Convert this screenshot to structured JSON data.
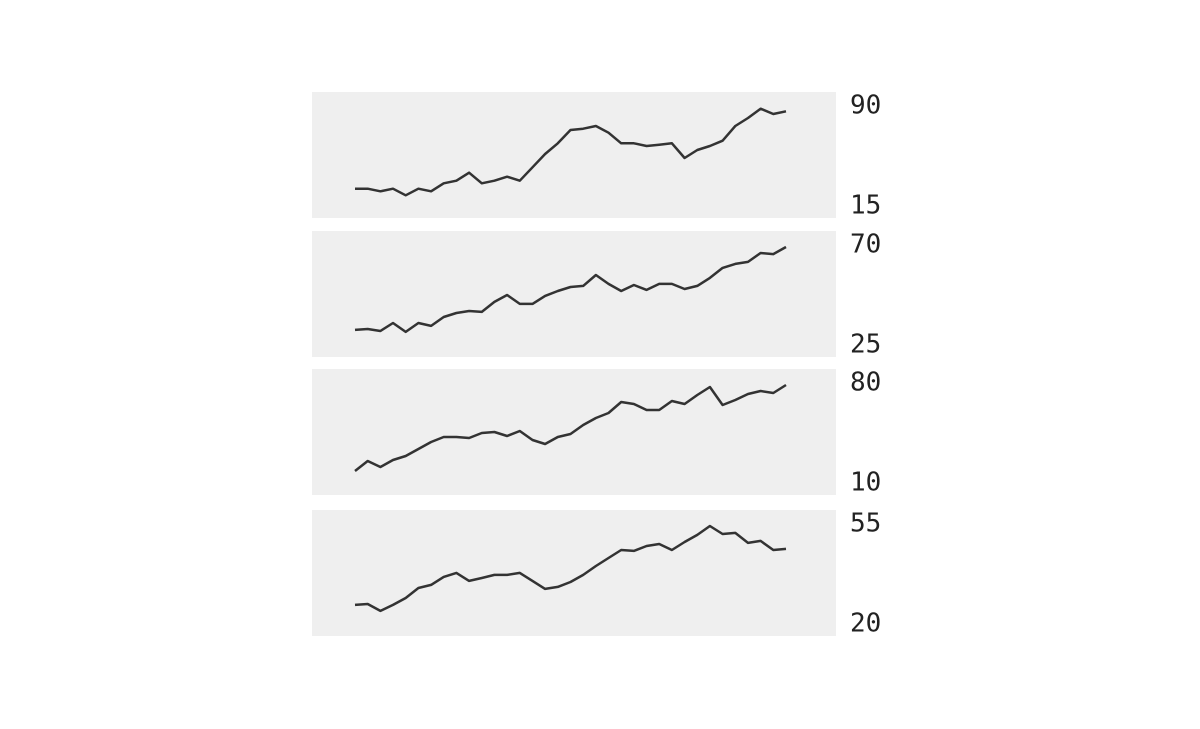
{
  "chart_data": [
    {
      "type": "line",
      "color": "#333333",
      "ylim": [
        15,
        90
      ],
      "yticks": [
        15,
        90
      ],
      "values": [
        28,
        28,
        26,
        28,
        23,
        28,
        26,
        32,
        34,
        40,
        32,
        34,
        37,
        34,
        44,
        54,
        62,
        72,
        73,
        75,
        70,
        62,
        62,
        60,
        61,
        62,
        51,
        57,
        60,
        64,
        75,
        81,
        88,
        84,
        86
      ]
    },
    {
      "type": "line",
      "color": "#333333",
      "ylim": [
        25,
        70
      ],
      "yticks": [
        25,
        70
      ],
      "values": [
        31.8,
        32.2,
        31.3,
        34.9,
        30.9,
        34.9,
        33.6,
        37.6,
        39.4,
        40.3,
        39.9,
        44.4,
        47.5,
        43.5,
        43.5,
        47.1,
        49.3,
        51.1,
        51.6,
        56.5,
        52.5,
        49.3,
        52,
        49.8,
        52.5,
        52.5,
        50.2,
        51.6,
        55.2,
        59.7,
        61.5,
        62.4,
        66.4,
        65.9,
        69.1
      ]
    },
    {
      "type": "line",
      "color": "#333333",
      "ylim": [
        10,
        80
      ],
      "yticks": [
        10,
        80
      ],
      "values": [
        18.4,
        25.4,
        21.2,
        26.1,
        28.9,
        33.8,
        38.7,
        42.2,
        42.2,
        41.5,
        45,
        45.7,
        42.9,
        46.4,
        40.1,
        37.3,
        42.2,
        44.3,
        50.6,
        55.5,
        59,
        66.7,
        65.3,
        61.1,
        61.1,
        67.4,
        65.3,
        71.6,
        77.2,
        64.6,
        68.1,
        72.3,
        74.4,
        73,
        78.6
      ]
    },
    {
      "type": "line",
      "color": "#333333",
      "ylim": [
        20,
        55
      ],
      "yticks": [
        20,
        55
      ],
      "values": [
        26.7,
        27,
        24.6,
        26.7,
        29.1,
        32.6,
        33.7,
        36.5,
        37.9,
        35.1,
        36.1,
        37.2,
        37.2,
        37.9,
        35.1,
        32.3,
        33,
        34.7,
        37.2,
        40.3,
        43.1,
        45.9,
        45.6,
        47.3,
        48,
        45.9,
        48.7,
        51.2,
        54.3,
        51.5,
        51.9,
        48.4,
        49.1,
        45.9,
        46.3
      ]
    }
  ]
}
